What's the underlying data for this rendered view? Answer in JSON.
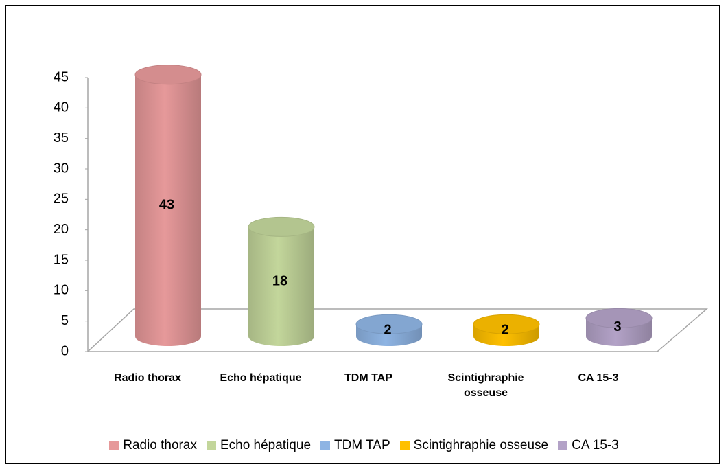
{
  "chart_data": {
    "type": "bar3d",
    "categories": [
      "Radio thorax",
      "Echo hépatique",
      "TDM TAP",
      "Scintighraphie osseuse",
      "CA 15-3"
    ],
    "values": [
      43,
      18,
      2,
      2,
      3
    ],
    "colors": [
      "#e6999a",
      "#c3d69b",
      "#8eb4e3",
      "#ffc000",
      "#b3a2c7"
    ],
    "ylim": [
      0,
      45
    ],
    "yticks": [
      0,
      5,
      10,
      15,
      20,
      25,
      30,
      35,
      40,
      45
    ],
    "legend": "bottom"
  }
}
